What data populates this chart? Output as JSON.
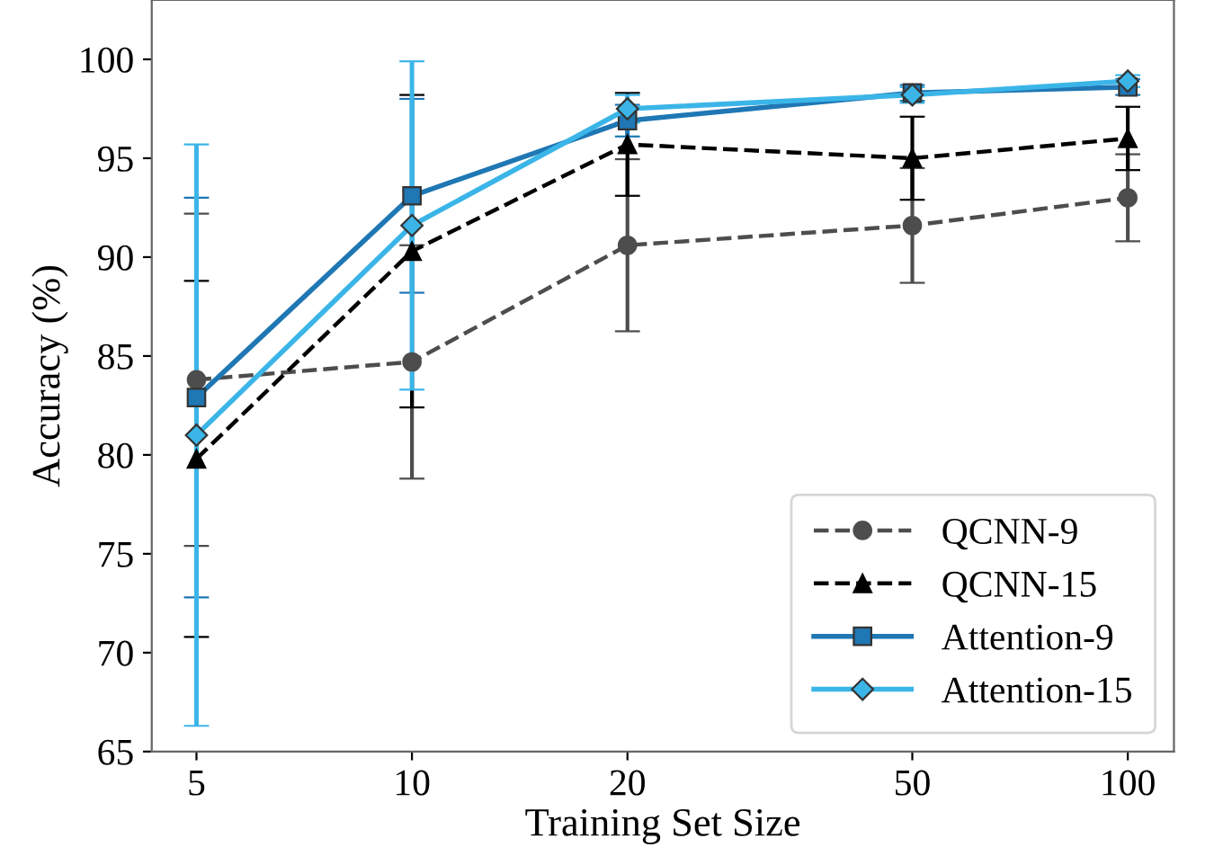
{
  "chart_data": {
    "type": "line",
    "xlabel": "Training Set Size",
    "ylabel": "Accuracy (%)",
    "x": [
      5,
      10,
      20,
      50,
      100
    ],
    "log": "x",
    "xlim": [
      4.33,
      116
    ],
    "xticks": [
      5,
      10,
      20,
      50,
      100
    ],
    "ylim": [
      65,
      103
    ],
    "yticks": [
      65,
      70,
      75,
      80,
      85,
      90,
      95,
      100
    ],
    "grid": false,
    "legend": "bottom right",
    "series": [
      {
        "name": "QCNN-9",
        "color": "#4d4d4d",
        "marker": "circle",
        "line_style": "dashed",
        "values": [
          83.8,
          84.7,
          90.6,
          91.6,
          93.0
        ],
        "errors": [
          8.4,
          5.9,
          4.35,
          2.9,
          2.2
        ]
      },
      {
        "name": "QCNN-15",
        "color": "#000000",
        "marker": "triangle",
        "line_style": "dashed",
        "values": [
          79.8,
          90.3,
          95.7,
          95.0,
          96.0
        ],
        "errors": [
          9.0,
          7.9,
          2.6,
          2.1,
          1.6
        ]
      },
      {
        "name": "Attention-9",
        "color": "#1f77b4",
        "marker": "square",
        "line_style": "solid",
        "values": [
          82.9,
          93.1,
          96.9,
          98.3,
          98.6
        ],
        "errors": [
          10.1,
          4.9,
          0.8,
          0.4,
          0.4
        ]
      },
      {
        "name": "Attention-15",
        "color": "#3bb5e8",
        "marker": "diamond",
        "line_style": "solid",
        "values": [
          81.0,
          91.6,
          97.5,
          98.2,
          98.9
        ],
        "errors": [
          14.7,
          8.3,
          0.7,
          0.4,
          0.3
        ]
      }
    ]
  }
}
